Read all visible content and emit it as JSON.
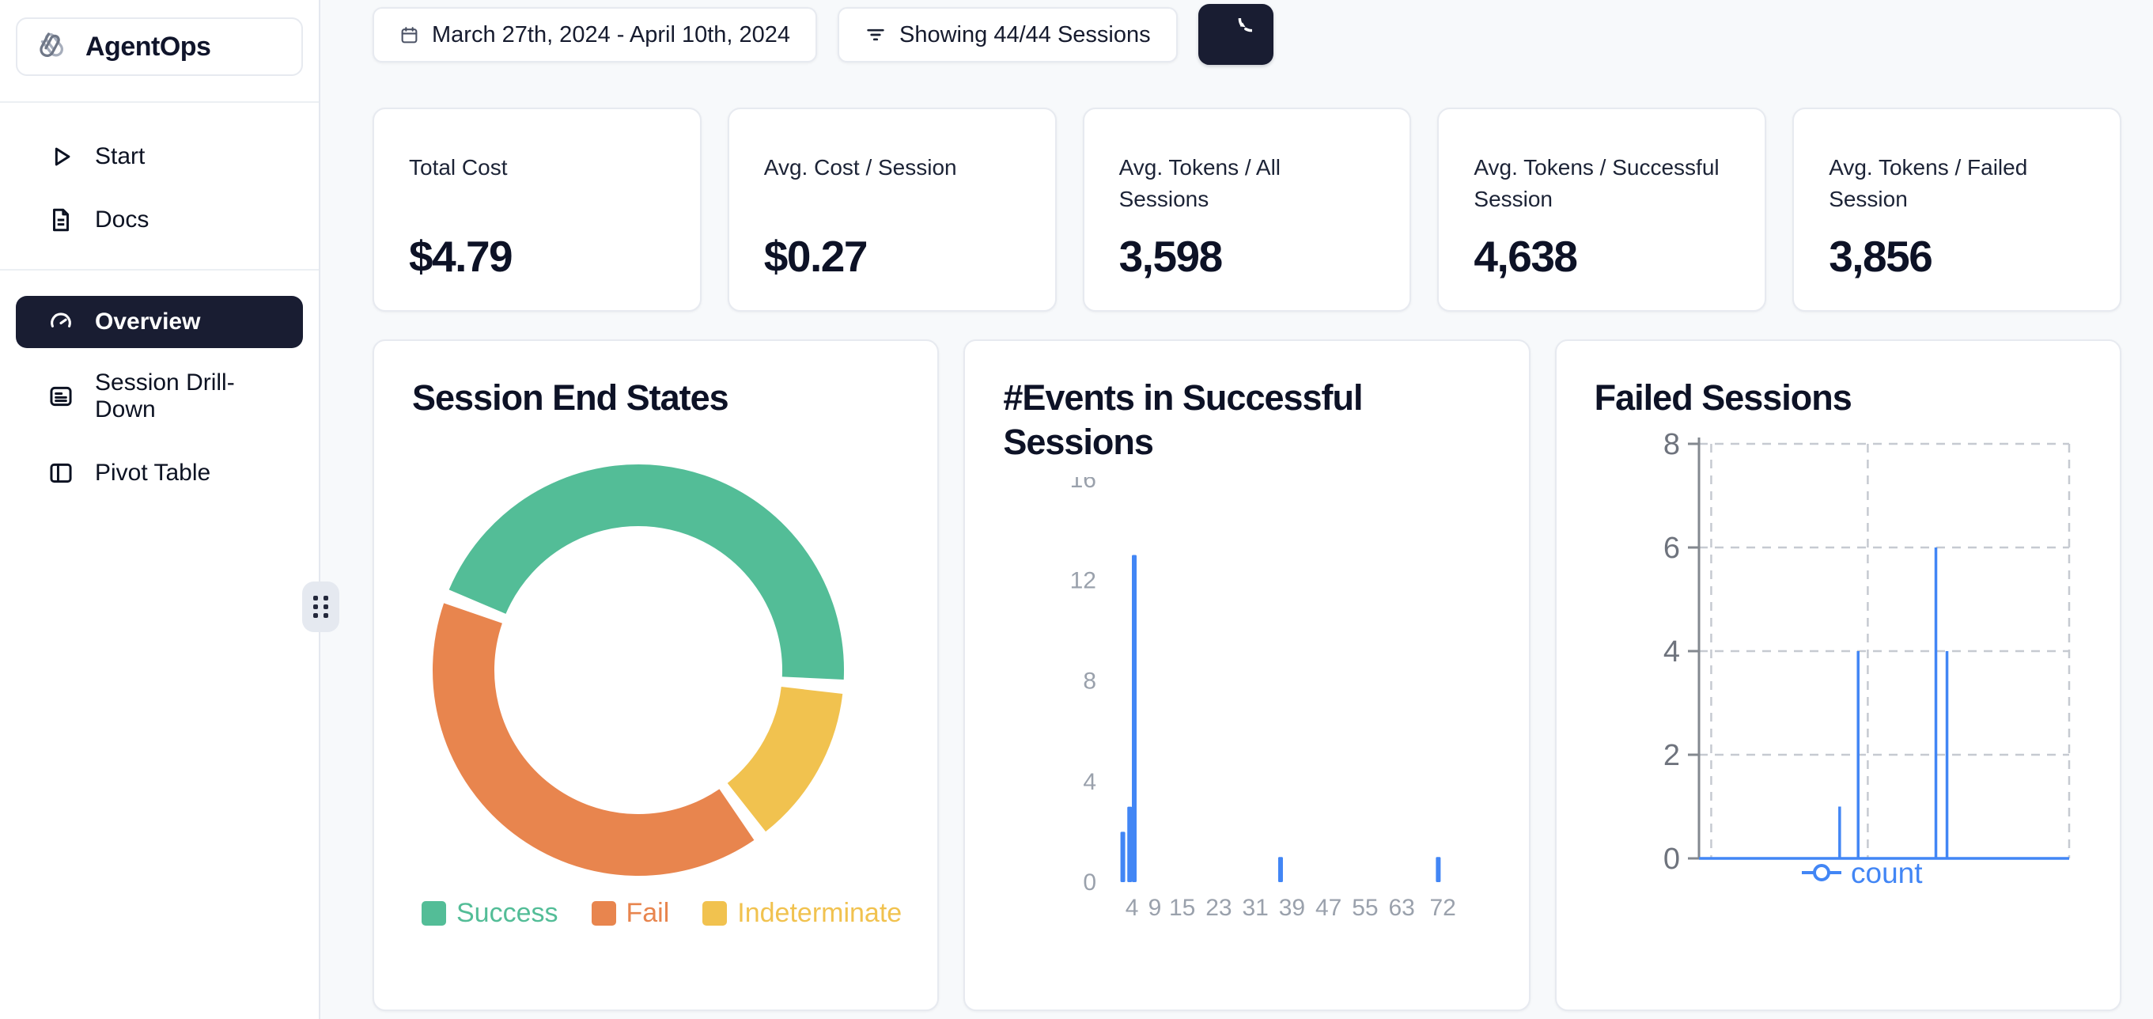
{
  "app": {
    "name": "AgentOps"
  },
  "topbar": {
    "date_range": "March 27th, 2024 - April 10th, 2024",
    "sessions_filter": "Showing 44/44 Sessions"
  },
  "sidebar": {
    "items": [
      {
        "label": "Start",
        "icon": "play-icon"
      },
      {
        "label": "Docs",
        "icon": "document-icon"
      },
      {
        "label": "Overview",
        "icon": "gauge-icon",
        "active": true
      },
      {
        "label": "Session Drill-Down",
        "icon": "list-icon"
      },
      {
        "label": "Pivot Table",
        "icon": "columns-icon"
      }
    ]
  },
  "stats": [
    {
      "label": "Total Cost",
      "value": "$4.79"
    },
    {
      "label": "Avg. Cost / Session",
      "value": "$0.27"
    },
    {
      "label": "Avg. Tokens / All Sessions",
      "value": "3,598"
    },
    {
      "label": "Avg. Tokens / Successful Session",
      "value": "4,638"
    },
    {
      "label": "Avg. Tokens / Failed Session",
      "value": "3,856"
    }
  ],
  "chart_data": [
    {
      "type": "pie",
      "donut": true,
      "title": "Session End States",
      "labels": [
        "Success",
        "Fail",
        "Indeterminate"
      ],
      "values": [
        20,
        18,
        6
      ],
      "colors": [
        "#53BD97",
        "#E8854E",
        "#F1C24F"
      ],
      "legend_position": "bottom"
    },
    {
      "type": "bar",
      "title": "#Events in Successful Sessions",
      "color": "#4286F5",
      "xticks": [
        4,
        9,
        15,
        23,
        31,
        39,
        47,
        55,
        63,
        72
      ],
      "yticks": [
        16,
        12,
        8,
        4,
        0
      ],
      "xlim": [
        0,
        81
      ],
      "ylim": [
        0,
        16
      ],
      "grid": false,
      "bars": [
        {
          "x": 2,
          "count": 2
        },
        {
          "x": 3.5,
          "count": 3
        },
        {
          "x": 4.5,
          "count": 13
        },
        {
          "x": 36.5,
          "count": 1
        },
        {
          "x": 71,
          "count": 1
        }
      ]
    },
    {
      "type": "line",
      "title": "Failed Sessions",
      "yticks": [
        8,
        6,
        4,
        2,
        0
      ],
      "ylim": [
        0,
        8
      ],
      "grid": "dashed",
      "legend": [
        {
          "name": "count",
          "color": "#4286F5"
        }
      ],
      "spikes": [
        {
          "xf": 0.38,
          "count": 1
        },
        {
          "xf": 0.43,
          "count": 4
        },
        {
          "xf": 0.64,
          "count": 6
        },
        {
          "xf": 0.67,
          "count": 4
        }
      ]
    }
  ]
}
